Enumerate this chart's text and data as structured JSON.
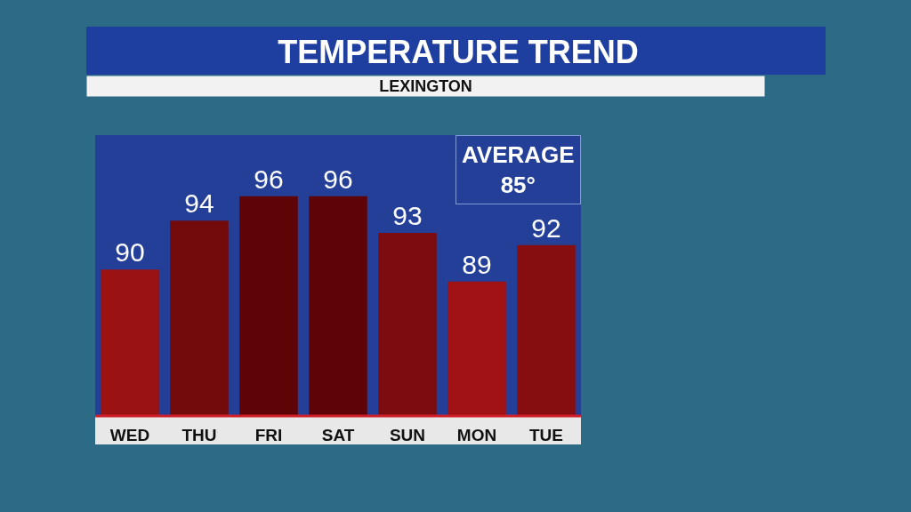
{
  "chart_data": {
    "type": "bar",
    "title": "TEMPERATURE TREND",
    "subtitle": "LEXINGTON",
    "categories": [
      "WED",
      "THU",
      "FRI",
      "SAT",
      "SUN",
      "MON",
      "TUE"
    ],
    "values": [
      90,
      94,
      96,
      96,
      93,
      89,
      92
    ],
    "colors": [
      "#9a1212",
      "#730a0c",
      "#5e0407",
      "#5e0407",
      "#7c0c0f",
      "#a01214",
      "#860d10"
    ],
    "data_labels": true,
    "ylim": [
      78,
      101
    ],
    "grid": false,
    "legend": false,
    "annotations": [
      "AVERAGE\n85°"
    ]
  }
}
